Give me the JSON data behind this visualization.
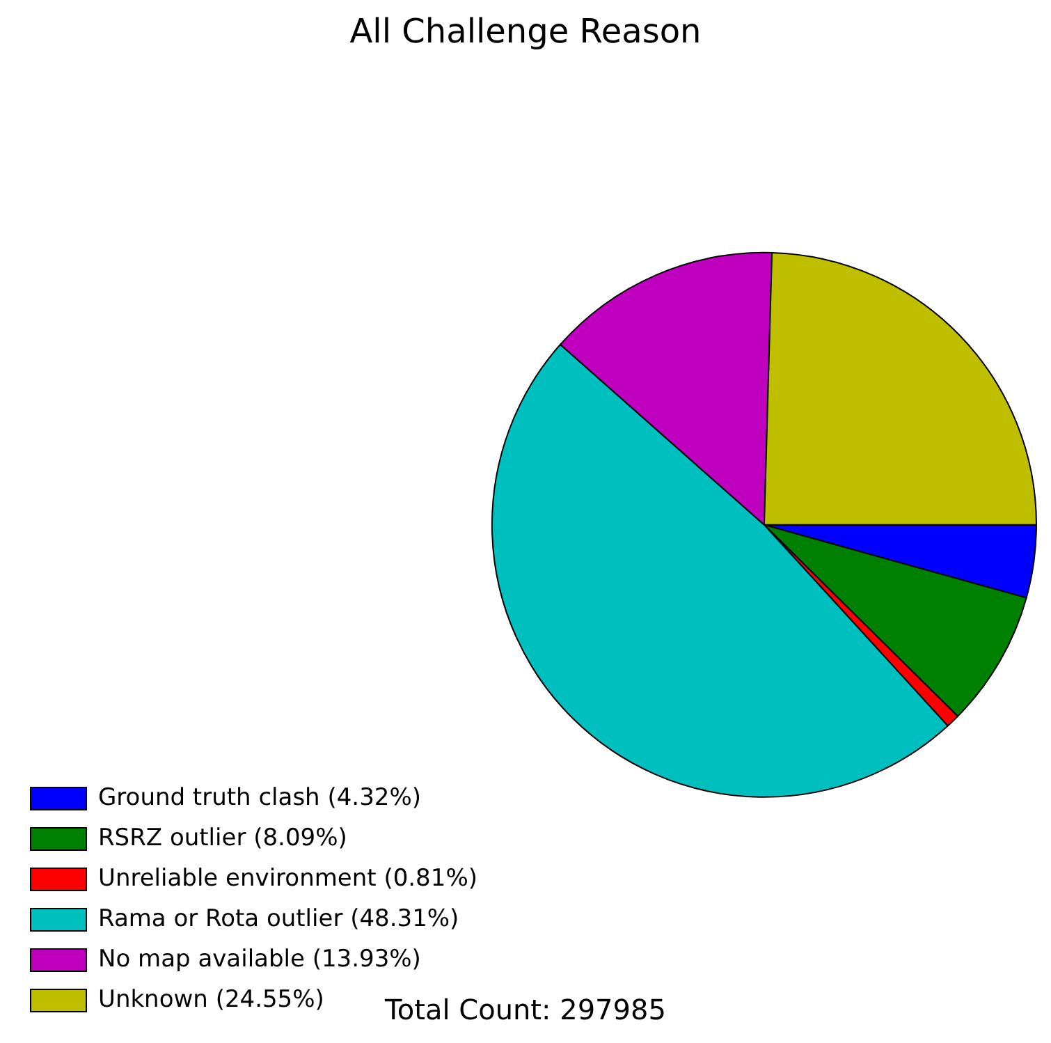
{
  "chart_data": {
    "type": "pie",
    "title": "All Challenge Reason",
    "categories": [
      "Ground truth clash (4.32%)",
      "RSRZ outlier (8.09%)",
      "Unreliable environment (0.81%)",
      "Rama or Rota outlier (48.31%)",
      "No map available (13.93%)",
      "Unknown (24.55%)"
    ],
    "values": [
      4.32,
      8.09,
      0.81,
      48.31,
      13.93,
      24.55
    ],
    "colors": [
      "#0000ff",
      "#008000",
      "#ff0000",
      "#00bfbf",
      "#bf00bf",
      "#bfbf00"
    ],
    "legend": "bottom left",
    "annotations": [
      "Total Count: 297985"
    ]
  }
}
